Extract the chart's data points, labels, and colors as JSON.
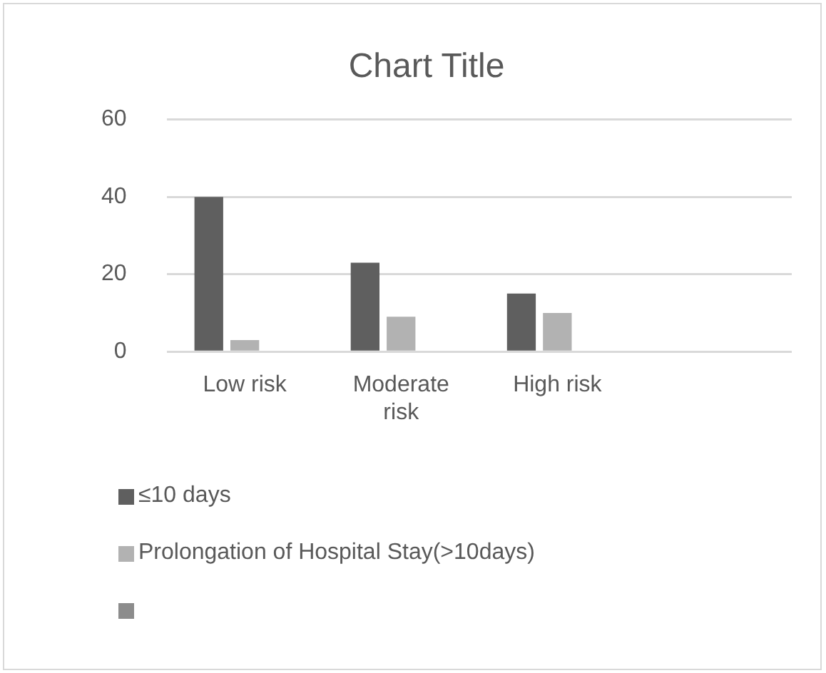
{
  "chart_data": {
    "type": "bar",
    "title": "Chart Title",
    "categories": [
      "Low risk",
      "Moderate risk",
      "High risk",
      null
    ],
    "series": [
      {
        "name": "≤10 days",
        "color": "#5f5f5f",
        "values": [
          40,
          23,
          15,
          null
        ]
      },
      {
        "name": "Prolongation of Hospital Stay(>10days)",
        "color": "#b2b2b2",
        "values": [
          3,
          9,
          10,
          null
        ]
      },
      {
        "color": "#8c8c8c",
        "values": [
          null,
          null,
          null,
          null
        ]
      }
    ],
    "ylim": [
      0,
      60
    ],
    "yticks": [
      0,
      20,
      40,
      60
    ],
    "grid": "y",
    "legend": "bottom"
  }
}
